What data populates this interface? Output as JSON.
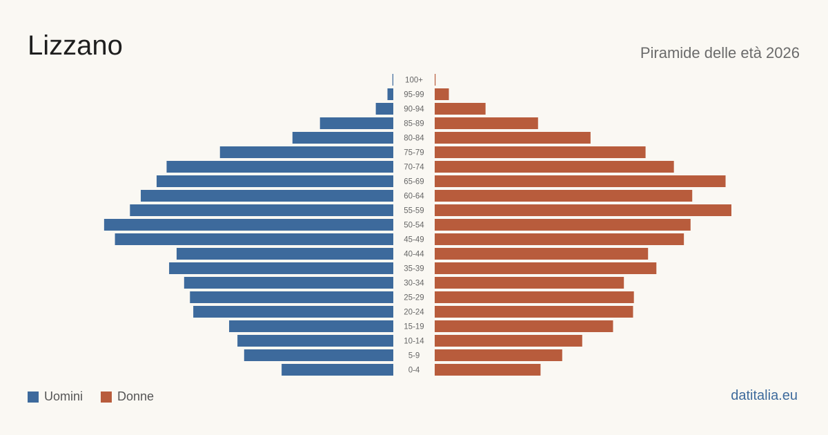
{
  "header": {
    "title": "Lizzano",
    "subtitle": "Piramide delle età 2026"
  },
  "legend": {
    "men_label": "Uomini",
    "women_label": "Donne"
  },
  "footer": {
    "source": "datitalia.eu"
  },
  "colors": {
    "men": "#3d6a9c",
    "women": "#b85c3c",
    "background": "#faf8f3"
  },
  "chart_data": {
    "type": "bar",
    "orientation": "horizontal-pyramid",
    "categories": [
      "100+",
      "95-99",
      "90-94",
      "85-89",
      "80-84",
      "75-79",
      "70-74",
      "65-69",
      "60-64",
      "55-59",
      "50-54",
      "45-49",
      "40-44",
      "35-39",
      "30-34",
      "25-29",
      "20-24",
      "15-19",
      "10-14",
      "5-9",
      "0-4"
    ],
    "series": [
      {
        "name": "Uomini",
        "values": [
          1,
          7,
          21,
          88,
          121,
          208,
          272,
          284,
          303,
          316,
          347,
          334,
          260,
          269,
          251,
          244,
          240,
          197,
          187,
          179,
          134
        ]
      },
      {
        "name": "Donne",
        "values": [
          1,
          17,
          61,
          124,
          187,
          253,
          287,
          349,
          309,
          356,
          307,
          299,
          256,
          266,
          227,
          239,
          238,
          214,
          177,
          153,
          127
        ]
      }
    ],
    "max_value": 356,
    "grid": false,
    "legend_position": "bottom-left"
  }
}
